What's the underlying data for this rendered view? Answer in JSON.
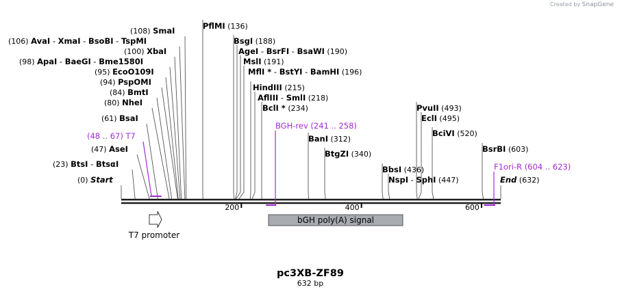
{
  "credit": {
    "prefix": "Created by",
    "brand": "SnapGene"
  },
  "map": {
    "name": "pc3XB-ZF89",
    "length_label": "632 bp",
    "length": 632,
    "ticks": [
      {
        "value": 200,
        "label": "200"
      },
      {
        "value": 400,
        "label": "400"
      },
      {
        "value": 600,
        "label": "600"
      }
    ]
  },
  "labels": [
    {
      "id": "start",
      "pos": "(0)",
      "names": [
        "Start"
      ],
      "italic": true,
      "site": 0
    },
    {
      "id": "btsi",
      "pos": "(23)",
      "names": [
        "BtsI",
        "BtsαI"
      ],
      "site": 23
    },
    {
      "id": "asei",
      "pos": "(47)",
      "names": [
        "AseI"
      ],
      "site": 47
    },
    {
      "id": "bsai",
      "pos": "(61)",
      "names": [
        "BsaI"
      ],
      "site": 61
    },
    {
      "id": "nhei",
      "pos": "(80)",
      "names": [
        "NheI"
      ],
      "site": 80
    },
    {
      "id": "bmti",
      "pos": "(84)",
      "names": [
        "BmtI"
      ],
      "site": 84
    },
    {
      "id": "pspomi",
      "pos": "(94)",
      "names": [
        "PspOMI"
      ],
      "site": 94
    },
    {
      "id": "ecoo109i",
      "pos": "(95)",
      "names": [
        "EcoO109I"
      ],
      "site": 95
    },
    {
      "id": "apai",
      "pos": "(98)",
      "names": [
        "ApaI",
        "BaeGI",
        "Bme1580I"
      ],
      "site": 98
    },
    {
      "id": "xbai",
      "pos": "(100)",
      "names": [
        "XbaI"
      ],
      "site": 100
    },
    {
      "id": "avai",
      "pos": "(106)",
      "names": [
        "AvaI",
        "XmaI",
        "BsoBI",
        "TspMI"
      ],
      "site": 106
    },
    {
      "id": "smai",
      "pos": "(108)",
      "names": [
        "SmaI"
      ],
      "site": 108
    },
    {
      "id": "pflmi",
      "pos": "(136)",
      "names": [
        "PflMI"
      ],
      "site": 136
    },
    {
      "id": "bsgi",
      "pos": "(188)",
      "names": [
        "BsgI"
      ],
      "site": 188
    },
    {
      "id": "agei",
      "pos": "(190)",
      "names": [
        "AgeI",
        "BsrFI",
        "BsaWI"
      ],
      "site": 190
    },
    {
      "id": "msli",
      "pos": "(191)",
      "names": [
        "MslI"
      ],
      "site": 191
    },
    {
      "id": "mfli",
      "pos": "(196)",
      "names": [
        "MflI *",
        "BstYI",
        "BamHI"
      ],
      "site": 196
    },
    {
      "id": "hindiii",
      "pos": "(215)",
      "names": [
        "HindIII"
      ],
      "site": 215
    },
    {
      "id": "afliii",
      "pos": "(218)",
      "names": [
        "AflIII",
        "SmlI"
      ],
      "site": 218
    },
    {
      "id": "bcli",
      "pos": "(234)",
      "names": [
        "BclI *"
      ],
      "site": 234
    },
    {
      "id": "bani",
      "pos": "(312)",
      "names": [
        "BanI"
      ],
      "site": 312
    },
    {
      "id": "btgzi",
      "pos": "(340)",
      "names": [
        "BtgZI"
      ],
      "site": 340
    },
    {
      "id": "bbsi",
      "pos": "(436)",
      "names": [
        "BbsI"
      ],
      "site": 436
    },
    {
      "id": "nspi",
      "pos": "(447)",
      "names": [
        "NspI",
        "SphI"
      ],
      "site": 447
    },
    {
      "id": "pvuii",
      "pos": "(493)",
      "names": [
        "PvuII"
      ],
      "site": 493
    },
    {
      "id": "ecli",
      "pos": "(495)",
      "names": [
        "EclI"
      ],
      "site": 495
    },
    {
      "id": "bcivi",
      "pos": "(520)",
      "names": [
        "BciVI"
      ],
      "site": 520
    },
    {
      "id": "bsrbi",
      "pos": "(603)",
      "names": [
        "BsrBI"
      ],
      "site": 603
    },
    {
      "id": "end",
      "pos": "(632)",
      "names": [
        "End"
      ],
      "italic": true,
      "site": 632
    }
  ],
  "primers": [
    {
      "id": "t7",
      "name": "T7",
      "range": "(48 .. 67)",
      "start": 48,
      "end": 67,
      "color": "#a02bd4"
    },
    {
      "id": "bgh-rev",
      "name": "BGH-rev",
      "range": "(241 .. 258)",
      "start": 241,
      "end": 258,
      "color": "#a02bd4"
    },
    {
      "id": "f1ori-r",
      "name": "F1ori-R",
      "range": "(604 .. 623)",
      "start": 604,
      "end": 623,
      "color": "#a02bd4"
    }
  ],
  "features": [
    {
      "id": "t7-promoter",
      "name": "T7 promoter",
      "start": 48,
      "end": 67,
      "type": "promoter"
    },
    {
      "id": "bgh-polya",
      "name": "bGH poly(A) signal",
      "start": 246,
      "end": 470,
      "type": "polyA",
      "color": "#a8abb0"
    }
  ],
  "colors": {
    "primer": "#a02bd4",
    "backbone": "#1a1a1a",
    "feature": "#a8abb0"
  }
}
